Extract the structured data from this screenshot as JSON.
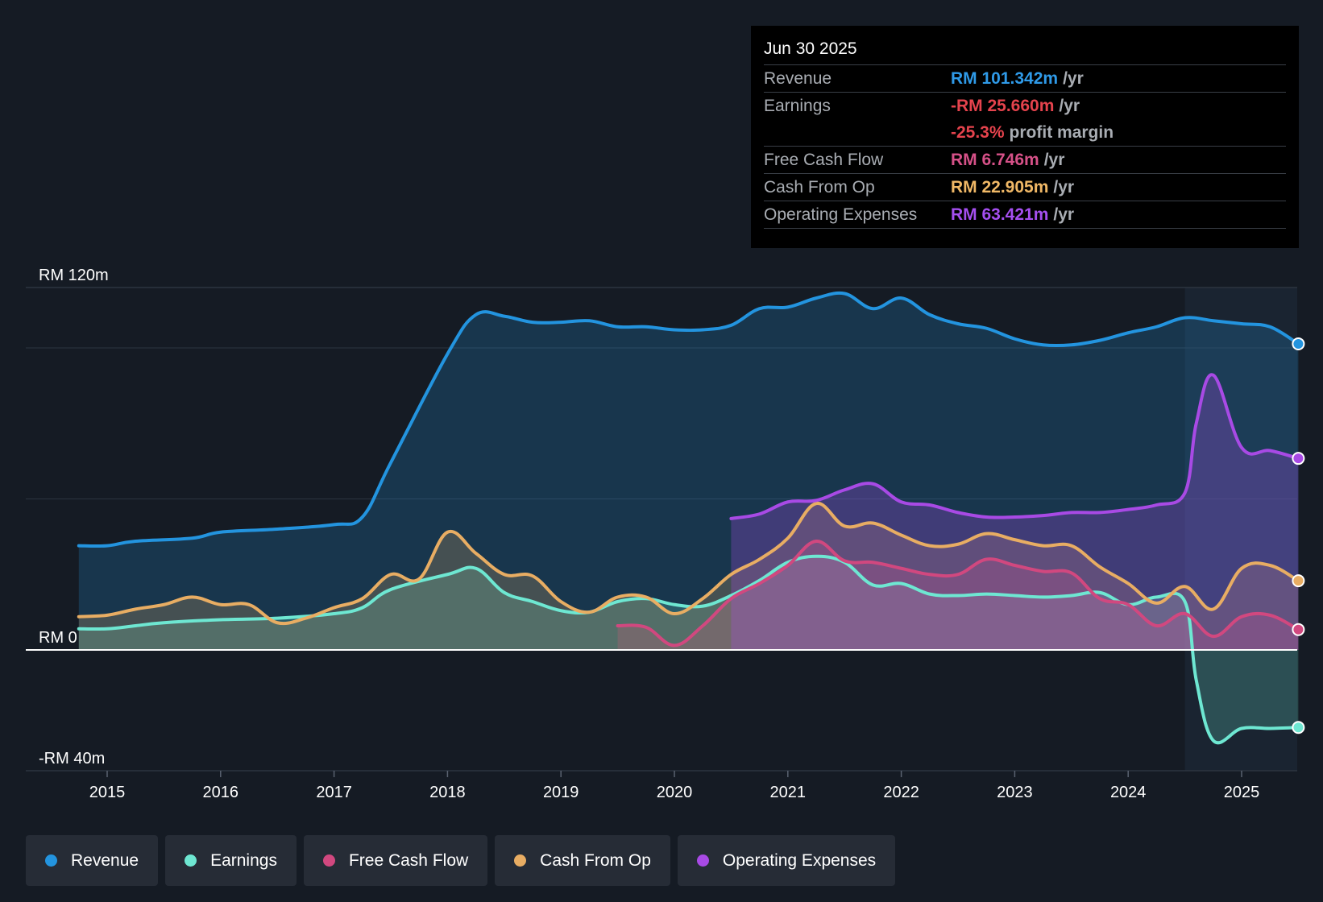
{
  "tooltip": {
    "date": "Jun 30 2025",
    "revenue": {
      "label": "Revenue",
      "value": "RM 101.342m",
      "unit": "/yr"
    },
    "earnings": {
      "label": "Earnings",
      "value": "-RM 25.660m",
      "unit": "/yr"
    },
    "margin": {
      "value": "-25.3%",
      "unit": "profit margin"
    },
    "fcf": {
      "label": "Free Cash Flow",
      "value": "RM 6.746m",
      "unit": "/yr"
    },
    "cfo": {
      "label": "Cash From Op",
      "value": "RM 22.905m",
      "unit": "/yr"
    },
    "opex": {
      "label": "Operating Expenses",
      "value": "RM 63.421m",
      "unit": "/yr"
    }
  },
  "legend": [
    "Revenue",
    "Earnings",
    "Free Cash Flow",
    "Cash From Op",
    "Operating Expenses"
  ],
  "colors": {
    "revenue": "#2394df",
    "earnings": "#6ee7d2",
    "fcf": "#d1487f",
    "cfo": "#e8ad63",
    "opex": "#a84ae5",
    "revenue_text": "#2f9ae8",
    "earnings_text": "#e5434d",
    "fcf_text": "#d65188",
    "cfo_text": "#f0b866",
    "opex_text": "#a54ff0"
  },
  "chart_data": {
    "type": "line",
    "title": "",
    "xlabel": "",
    "ylabel": "",
    "ylim": [
      -40,
      120
    ],
    "y_tick_labels": [
      {
        "value": 120,
        "label": "RM 120m"
      },
      {
        "value": 0,
        "label": "RM 0"
      },
      {
        "value": -40,
        "label": "-RM 40m"
      }
    ],
    "gridlines": [
      120,
      100,
      50,
      0,
      -40
    ],
    "x_ticks": [
      2015,
      2016,
      2017,
      2018,
      2019,
      2020,
      2021,
      2022,
      2023,
      2024,
      2025
    ],
    "xlim": [
      2014.3,
      2025.5
    ],
    "highlight_start": 2024.5,
    "series": [
      {
        "name": "Revenue",
        "key": "revenue",
        "x": [
          2014.75,
          2015.0,
          2015.25,
          2015.75,
          2016.0,
          2016.5,
          2017.0,
          2017.25,
          2017.5,
          2018.0,
          2018.25,
          2018.5,
          2018.75,
          2019.0,
          2019.25,
          2019.5,
          2019.75,
          2020.0,
          2020.25,
          2020.5,
          2020.75,
          2021.0,
          2021.25,
          2021.5,
          2021.75,
          2022.0,
          2022.25,
          2022.5,
          2022.75,
          2023.0,
          2023.25,
          2023.5,
          2023.75,
          2024.0,
          2024.25,
          2024.5,
          2024.75,
          2025.0,
          2025.25,
          2025.5
        ],
        "values": [
          34.5,
          34.5,
          36.0,
          37.0,
          39.0,
          40.0,
          41.5,
          44.0,
          62.0,
          98.0,
          111.0,
          110.5,
          108.5,
          108.5,
          109.0,
          107.0,
          107.0,
          106.0,
          106.0,
          107.5,
          113.0,
          113.5,
          116.5,
          118.0,
          113.0,
          116.5,
          111.0,
          108.0,
          106.5,
          103.0,
          101.0,
          101.0,
          102.5,
          105.0,
          107.0,
          110.0,
          109.0,
          108.0,
          107.0,
          101.342
        ]
      },
      {
        "name": "Earnings",
        "key": "earnings",
        "x": [
          2014.75,
          2015.0,
          2015.25,
          2015.5,
          2016.0,
          2016.5,
          2017.0,
          2017.25,
          2017.5,
          2018.0,
          2018.25,
          2018.5,
          2018.75,
          2019.0,
          2019.25,
          2019.5,
          2019.75,
          2020.0,
          2020.25,
          2020.5,
          2020.75,
          2021.0,
          2021.25,
          2021.5,
          2021.75,
          2022.0,
          2022.25,
          2022.5,
          2022.75,
          2023.0,
          2023.25,
          2023.5,
          2023.75,
          2024.0,
          2024.25,
          2024.5,
          2024.6,
          2024.75,
          2025.0,
          2025.25,
          2025.5
        ],
        "values": [
          7.0,
          7.0,
          8.0,
          9.0,
          10.0,
          10.5,
          12.0,
          14.0,
          20.0,
          25.0,
          27.0,
          19.0,
          16.0,
          13.0,
          12.5,
          16.0,
          17.0,
          15.0,
          14.5,
          18.0,
          23.0,
          29.0,
          31.0,
          29.0,
          21.5,
          22.0,
          18.5,
          18.0,
          18.5,
          18.0,
          17.5,
          18.0,
          19.0,
          15.0,
          17.5,
          16.0,
          -10.0,
          -30.0,
          -26.0,
          -26.0,
          -25.66
        ]
      },
      {
        "name": "Free Cash Flow",
        "key": "fcf",
        "x": [
          2019.5,
          2019.75,
          2020.0,
          2020.25,
          2020.5,
          2020.75,
          2021.0,
          2021.25,
          2021.5,
          2021.75,
          2022.0,
          2022.25,
          2022.5,
          2022.75,
          2023.0,
          2023.25,
          2023.5,
          2023.75,
          2024.0,
          2024.25,
          2024.5,
          2024.75,
          2025.0,
          2025.25,
          2025.5
        ],
        "values": [
          8.0,
          7.5,
          1.5,
          8.0,
          17.0,
          22.0,
          28.0,
          36.0,
          29.5,
          29.0,
          27.0,
          25.0,
          25.0,
          30.0,
          28.0,
          26.0,
          25.5,
          17.0,
          15.0,
          8.0,
          12.0,
          4.5,
          11.0,
          11.5,
          6.746
        ]
      },
      {
        "name": "Cash From Op",
        "key": "cfo",
        "x": [
          2014.75,
          2015.0,
          2015.25,
          2015.5,
          2015.75,
          2016.0,
          2016.25,
          2016.5,
          2016.75,
          2017.0,
          2017.25,
          2017.5,
          2017.75,
          2018.0,
          2018.25,
          2018.5,
          2018.75,
          2019.0,
          2019.25,
          2019.5,
          2019.75,
          2020.0,
          2020.25,
          2020.5,
          2020.75,
          2021.0,
          2021.25,
          2021.5,
          2021.75,
          2022.0,
          2022.25,
          2022.5,
          2022.75,
          2023.0,
          2023.25,
          2023.5,
          2023.75,
          2024.0,
          2024.25,
          2024.5,
          2024.75,
          2025.0,
          2025.25,
          2025.5
        ],
        "values": [
          11.0,
          11.5,
          13.5,
          15.0,
          17.5,
          15.0,
          15.0,
          9.0,
          10.5,
          14.0,
          17.0,
          25.0,
          23.5,
          39.0,
          32.0,
          25.0,
          24.5,
          16.0,
          12.5,
          17.5,
          17.5,
          12.0,
          17.0,
          25.0,
          30.0,
          37.0,
          48.5,
          41.0,
          42.0,
          38.0,
          34.5,
          35.0,
          38.5,
          36.5,
          34.5,
          34.5,
          27.5,
          22.0,
          15.5,
          21.0,
          13.5,
          27.0,
          28.0,
          22.905
        ]
      },
      {
        "name": "Operating Expenses",
        "key": "opex",
        "x": [
          2020.5,
          2020.75,
          2021.0,
          2021.25,
          2021.5,
          2021.75,
          2022.0,
          2022.25,
          2022.5,
          2022.75,
          2023.0,
          2023.25,
          2023.5,
          2023.75,
          2024.0,
          2024.25,
          2024.5,
          2024.6,
          2024.75,
          2025.0,
          2025.25,
          2025.5
        ],
        "values": [
          43.5,
          45.0,
          49.0,
          49.5,
          53.0,
          55.0,
          49.0,
          48.0,
          45.5,
          44.0,
          44.0,
          44.5,
          45.5,
          45.5,
          46.5,
          48.0,
          52.0,
          75.0,
          91.0,
          67.0,
          66.0,
          63.421
        ]
      }
    ]
  }
}
